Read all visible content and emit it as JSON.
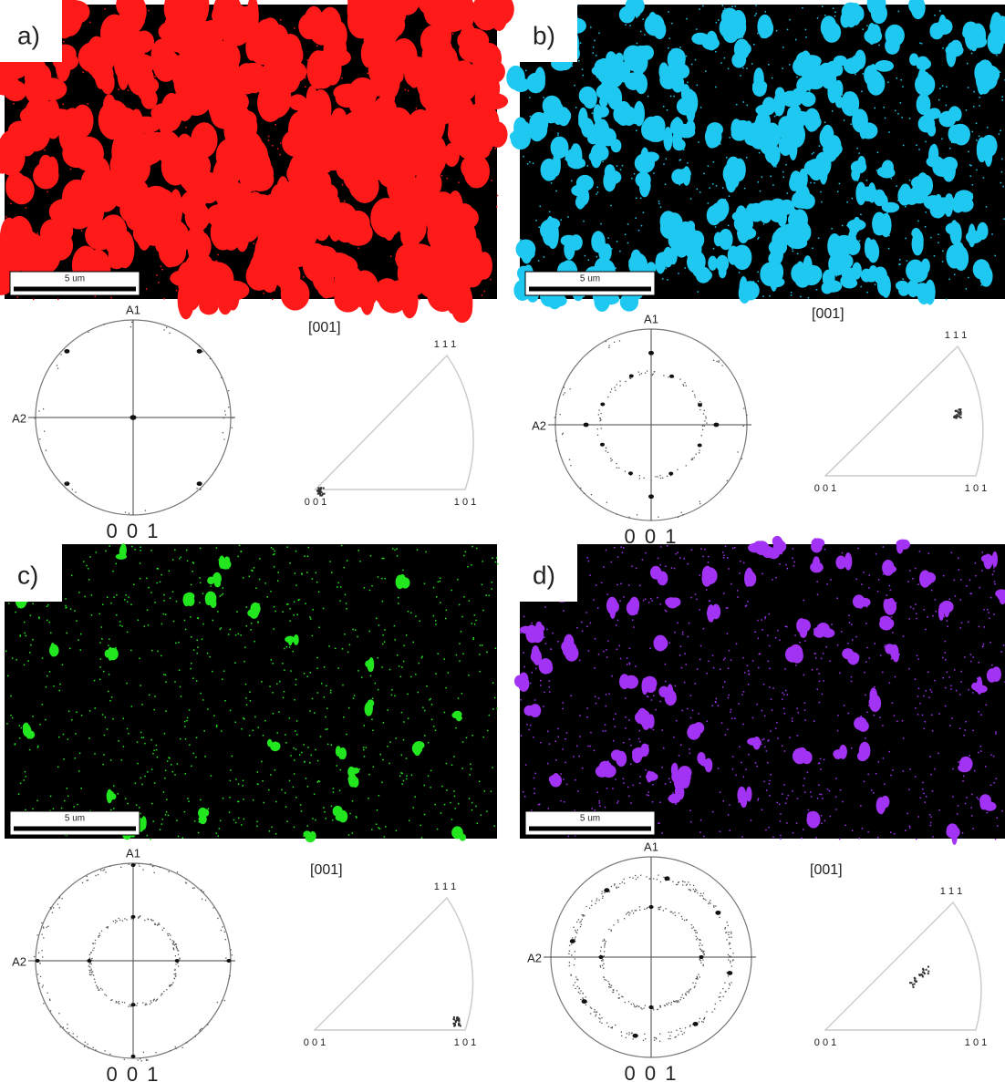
{
  "panels": [
    {
      "label": "a)",
      "color": "#ff1a1a",
      "scale_bar": "5 um",
      "pole_figure": {
        "axis_top": "A1",
        "axis_left": "A2",
        "caption": "0 0 1"
      },
      "ipf": {
        "title": "[001]",
        "corners": [
          "0 0 1",
          "1 0 1",
          "1 1 1"
        ]
      }
    },
    {
      "label": "b)",
      "color": "#1ec8f0",
      "scale_bar": "5 um",
      "pole_figure": {
        "axis_top": "A1",
        "axis_left": "A2",
        "caption": "0 0 1"
      },
      "ipf": {
        "title": "[001]",
        "corners": [
          "0 0 1",
          "1 0 1",
          "1 1 1"
        ]
      }
    },
    {
      "label": "c)",
      "color": "#22e61e",
      "scale_bar": "5 um",
      "pole_figure": {
        "axis_top": "A1",
        "axis_left": "A2",
        "caption": "0 0 1"
      },
      "ipf": {
        "title": "[001]",
        "corners": [
          "0 0 1",
          "1 0 1",
          "1 1 1"
        ]
      }
    },
    {
      "label": "d)",
      "color": "#a233f5",
      "scale_bar": "5 um",
      "pole_figure": {
        "axis_top": "A1",
        "axis_left": "A2",
        "caption": "0 0 1"
      },
      "ipf": {
        "title": "[001]",
        "corners": [
          "0 0 1",
          "1 0 1",
          "1 1 1"
        ]
      }
    }
  ]
}
